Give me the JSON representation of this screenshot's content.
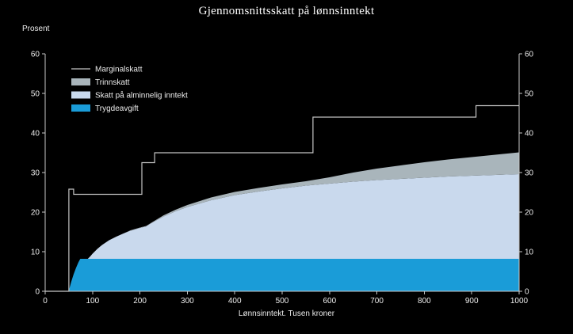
{
  "chart_data": {
    "type": "area",
    "variant": "stacked areas with step-line overlay",
    "title": "Gjennomsnittsskatt på lønnsinntekt",
    "ylabel": "Prosent",
    "xlabel": "Lønnsinntekt. Tusen kroner",
    "xlim": [
      0,
      1000
    ],
    "ylim": [
      0,
      60
    ],
    "x_ticks": [
      0,
      100,
      200,
      300,
      400,
      500,
      600,
      700,
      800,
      900,
      1000
    ],
    "y_ticks": [
      0,
      10,
      20,
      30,
      40,
      50,
      60
    ],
    "grid": false,
    "background": "#000000",
    "axis_color": "#c8c8c8",
    "text_color": "#ececec",
    "legend_position": "upper-left-inside",
    "stacked": true,
    "x": [
      0,
      48,
      50,
      55,
      60,
      65,
      70,
      74,
      80,
      85,
      90,
      95,
      100,
      110,
      120,
      135,
      150,
      165,
      180,
      200,
      213,
      225,
      250,
      275,
      300,
      350,
      400,
      450,
      500,
      550,
      600,
      650,
      700,
      750,
      800,
      850,
      900,
      950,
      1000
    ],
    "series": [
      {
        "name": "Trygdeavgift",
        "type": "area",
        "color": "#1a9cd8",
        "values": [
          0,
          0,
          0.2,
          2.4,
          4.3,
          5.9,
          7.3,
          8.2,
          8.2,
          8.2,
          8.2,
          8.2,
          8.2,
          8.2,
          8.2,
          8.2,
          8.2,
          8.2,
          8.2,
          8.2,
          8.2,
          8.2,
          8.2,
          8.2,
          8.2,
          8.2,
          8.2,
          8.2,
          8.2,
          8.2,
          8.2,
          8.2,
          8.2,
          8.2,
          8.2,
          8.2,
          8.2,
          8.2,
          8.2
        ]
      },
      {
        "name": "Skatt på alminnelig inntekt",
        "type": "area",
        "color": "#c9d9ed",
        "values": [
          0,
          0,
          0,
          0,
          0,
          0,
          0,
          0,
          0,
          0,
          0,
          0.6,
          1.3,
          2.5,
          3.5,
          4.7,
          5.6,
          6.4,
          7.1,
          7.8,
          8.2,
          9.1,
          10.7,
          12.0,
          13.1,
          14.8,
          16.1,
          17.0,
          17.8,
          18.5,
          19.0,
          19.5,
          19.9,
          20.2,
          20.5,
          20.8,
          21.0,
          21.2,
          21.4
        ]
      },
      {
        "name": "Trinnskatt",
        "type": "area",
        "color": "#a9b5bb",
        "values": [
          0,
          0,
          0,
          0,
          0,
          0,
          0,
          0,
          0,
          0,
          0,
          0,
          0,
          0,
          0,
          0,
          0,
          0,
          0.1,
          0.1,
          0.1,
          0.1,
          0.3,
          0.4,
          0.5,
          0.7,
          0.8,
          0.9,
          1.0,
          1.1,
          1.6,
          2.3,
          2.9,
          3.4,
          3.9,
          4.3,
          4.7,
          5.1,
          5.5
        ]
      }
    ],
    "line_series": {
      "name": "Marginalskatt",
      "color": "#c4c4c4",
      "points": [
        [
          0,
          0
        ],
        [
          50,
          0
        ],
        [
          50,
          25.8
        ],
        [
          60,
          25.8
        ],
        [
          60,
          24.5
        ],
        [
          204,
          24.5
        ],
        [
          204,
          32.5
        ],
        [
          231,
          32.5
        ],
        [
          231,
          35
        ],
        [
          565,
          35
        ],
        [
          565,
          44
        ],
        [
          909,
          44
        ],
        [
          909,
          46.9
        ],
        [
          1000,
          46.9
        ]
      ]
    }
  },
  "legend": {
    "items": [
      {
        "label": "Marginalskatt",
        "swatch": "line",
        "color": "#c4c4c4"
      },
      {
        "label": "Trinnskatt",
        "swatch": "fill",
        "color": "#a9b5bb"
      },
      {
        "label": "Skatt på alminnelig inntekt",
        "swatch": "fill",
        "color": "#c9d9ed"
      },
      {
        "label": "Trygdeavgift",
        "swatch": "fill",
        "color": "#1a9cd8"
      }
    ]
  }
}
